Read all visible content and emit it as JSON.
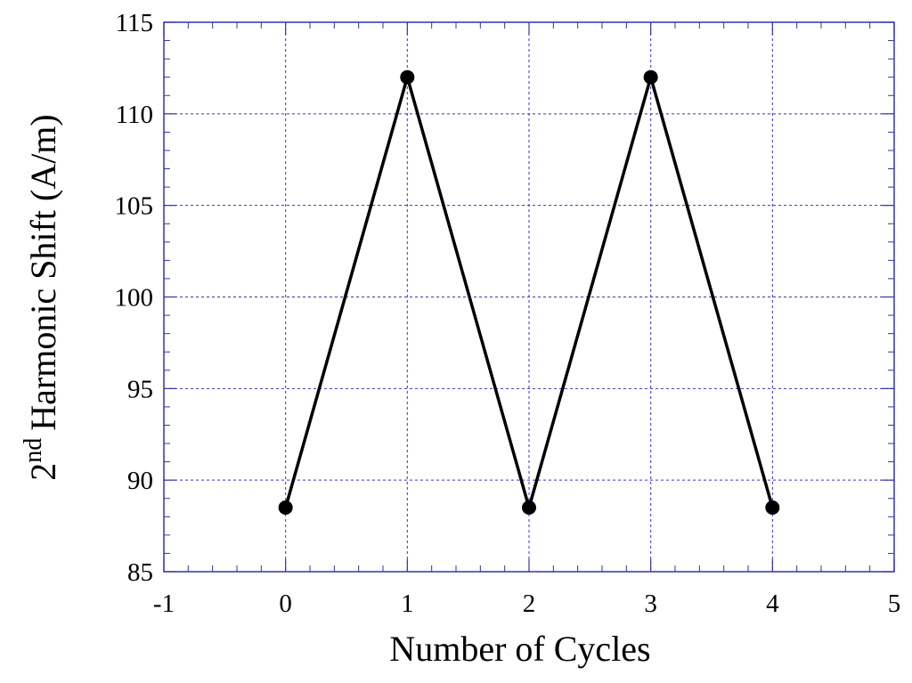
{
  "chart_data": {
    "type": "line",
    "x_label": "Number of Cycles",
    "y_label": {
      "base": "2",
      "sup": "nd",
      "rest": "Harmonic Shift (A/m)"
    },
    "x": [
      0,
      1,
      2,
      3,
      4
    ],
    "series": [
      {
        "color": "#000000",
        "values": [
          88.5,
          112,
          88.5,
          112,
          88.5
        ]
      }
    ],
    "xlim": [
      -1,
      5
    ],
    "xticks": [
      -1,
      0,
      1,
      2,
      3,
      4,
      5
    ],
    "ylim": [
      85,
      115
    ],
    "yticks": [
      85,
      90,
      95,
      100,
      105,
      110,
      115
    ],
    "grid": true,
    "grid_color": "#3333cc",
    "axis_color": "#3333aa"
  }
}
